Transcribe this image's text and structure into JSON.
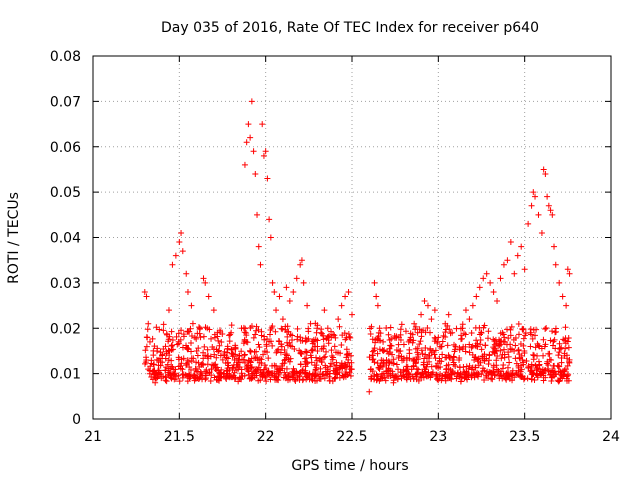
{
  "chart_data": {
    "type": "scatter",
    "title": "Day 035 of 2016, Rate Of TEC Index for receiver p640",
    "xlabel": "GPS time / hours",
    "ylabel": "ROTI / TECUs",
    "xlim": [
      21,
      24
    ],
    "ylim": [
      0,
      0.08
    ],
    "x_ticks": [
      "21",
      "21.5",
      "22",
      "22.5",
      "23",
      "23.5",
      "24"
    ],
    "y_ticks": [
      "0",
      "0.01",
      "0.02",
      "0.03",
      "0.04",
      "0.05",
      "0.06",
      "0.07",
      "0.08"
    ],
    "grid": true,
    "marker": "+",
    "color": "#ff0000",
    "series": [
      {
        "name": "ROTI",
        "points": [
          [
            21.3,
            0.028
          ],
          [
            21.31,
            0.027
          ],
          [
            21.32,
            0.021
          ],
          [
            21.33,
            0.017
          ],
          [
            21.35,
            0.012
          ],
          [
            21.36,
            0.008
          ],
          [
            21.38,
            0.01
          ],
          [
            21.4,
            0.014
          ],
          [
            21.42,
            0.016
          ],
          [
            21.44,
            0.024
          ],
          [
            21.46,
            0.034
          ],
          [
            21.48,
            0.036
          ],
          [
            21.5,
            0.039
          ],
          [
            21.51,
            0.041
          ],
          [
            21.52,
            0.037
          ],
          [
            21.54,
            0.032
          ],
          [
            21.55,
            0.028
          ],
          [
            21.57,
            0.025
          ],
          [
            21.59,
            0.018
          ],
          [
            21.6,
            0.015
          ],
          [
            21.62,
            0.02
          ],
          [
            21.64,
            0.031
          ],
          [
            21.65,
            0.03
          ],
          [
            21.67,
            0.027
          ],
          [
            21.7,
            0.024
          ],
          [
            21.72,
            0.019
          ],
          [
            21.74,
            0.014
          ],
          [
            21.76,
            0.01
          ],
          [
            21.78,
            0.016
          ],
          [
            21.8,
            0.019
          ],
          [
            21.82,
            0.013
          ],
          [
            21.84,
            0.011
          ],
          [
            21.86,
            0.02
          ],
          [
            21.88,
            0.056
          ],
          [
            21.89,
            0.061
          ],
          [
            21.9,
            0.065
          ],
          [
            21.91,
            0.062
          ],
          [
            21.92,
            0.07
          ],
          [
            21.93,
            0.059
          ],
          [
            21.94,
            0.054
          ],
          [
            21.95,
            0.045
          ],
          [
            21.96,
            0.038
          ],
          [
            21.97,
            0.034
          ],
          [
            21.98,
            0.065
          ],
          [
            21.99,
            0.058
          ],
          [
            22.0,
            0.059
          ],
          [
            22.01,
            0.053
          ],
          [
            22.02,
            0.044
          ],
          [
            22.03,
            0.04
          ],
          [
            22.04,
            0.03
          ],
          [
            22.05,
            0.028
          ],
          [
            22.06,
            0.024
          ],
          [
            22.08,
            0.027
          ],
          [
            22.1,
            0.022
          ],
          [
            22.12,
            0.029
          ],
          [
            22.14,
            0.026
          ],
          [
            22.16,
            0.028
          ],
          [
            22.18,
            0.031
          ],
          [
            22.2,
            0.034
          ],
          [
            22.21,
            0.035
          ],
          [
            22.22,
            0.03
          ],
          [
            22.24,
            0.025
          ],
          [
            22.26,
            0.021
          ],
          [
            22.28,
            0.017
          ],
          [
            22.3,
            0.015
          ],
          [
            22.32,
            0.019
          ],
          [
            22.34,
            0.024
          ],
          [
            22.36,
            0.02
          ],
          [
            22.38,
            0.018
          ],
          [
            22.4,
            0.016
          ],
          [
            22.42,
            0.022
          ],
          [
            22.44,
            0.025
          ],
          [
            22.46,
            0.027
          ],
          [
            22.48,
            0.028
          ],
          [
            22.5,
            0.023
          ],
          [
            22.6,
            0.006
          ],
          [
            22.61,
            0.011
          ],
          [
            22.62,
            0.014
          ],
          [
            22.63,
            0.03
          ],
          [
            22.64,
            0.027
          ],
          [
            22.65,
            0.025
          ],
          [
            22.66,
            0.02
          ],
          [
            22.68,
            0.017
          ],
          [
            22.7,
            0.013
          ],
          [
            22.72,
            0.01
          ],
          [
            22.74,
            0.008
          ],
          [
            22.76,
            0.012
          ],
          [
            22.78,
            0.015
          ],
          [
            22.8,
            0.013
          ],
          [
            22.82,
            0.011
          ],
          [
            22.84,
            0.018
          ],
          [
            22.86,
            0.021
          ],
          [
            22.88,
            0.019
          ],
          [
            22.9,
            0.023
          ],
          [
            22.92,
            0.026
          ],
          [
            22.94,
            0.025
          ],
          [
            22.96,
            0.022
          ],
          [
            22.98,
            0.024
          ],
          [
            23.0,
            0.018
          ],
          [
            23.02,
            0.016
          ],
          [
            23.04,
            0.021
          ],
          [
            23.06,
            0.023
          ],
          [
            23.08,
            0.019
          ],
          [
            23.1,
            0.016
          ],
          [
            23.12,
            0.013
          ],
          [
            23.14,
            0.02
          ],
          [
            23.16,
            0.024
          ],
          [
            23.18,
            0.022
          ],
          [
            23.2,
            0.025
          ],
          [
            23.22,
            0.027
          ],
          [
            23.24,
            0.029
          ],
          [
            23.26,
            0.031
          ],
          [
            23.28,
            0.032
          ],
          [
            23.3,
            0.03
          ],
          [
            23.32,
            0.028
          ],
          [
            23.34,
            0.026
          ],
          [
            23.36,
            0.031
          ],
          [
            23.38,
            0.034
          ],
          [
            23.4,
            0.035
          ],
          [
            23.42,
            0.039
          ],
          [
            23.44,
            0.032
          ],
          [
            23.46,
            0.036
          ],
          [
            23.48,
            0.038
          ],
          [
            23.5,
            0.033
          ],
          [
            23.52,
            0.043
          ],
          [
            23.54,
            0.047
          ],
          [
            23.55,
            0.05
          ],
          [
            23.56,
            0.049
          ],
          [
            23.58,
            0.045
          ],
          [
            23.6,
            0.041
          ],
          [
            23.61,
            0.055
          ],
          [
            23.62,
            0.054
          ],
          [
            23.63,
            0.049
          ],
          [
            23.64,
            0.047
          ],
          [
            23.65,
            0.046
          ],
          [
            23.66,
            0.045
          ],
          [
            23.67,
            0.038
          ],
          [
            23.68,
            0.034
          ],
          [
            23.7,
            0.03
          ],
          [
            23.72,
            0.027
          ],
          [
            23.74,
            0.025
          ],
          [
            23.75,
            0.033
          ],
          [
            23.76,
            0.032
          ]
        ]
      }
    ],
    "band_points_note": "Dense cluster of ROTI values between 0.005 and 0.02 TECUs from 21.3-22.5 h and 22.6-23.76 h.",
    "band": {
      "segments": [
        [
          21.3,
          22.5
        ],
        [
          22.6,
          23.76
        ]
      ],
      "low": 0.004,
      "high": 0.021
    }
  }
}
